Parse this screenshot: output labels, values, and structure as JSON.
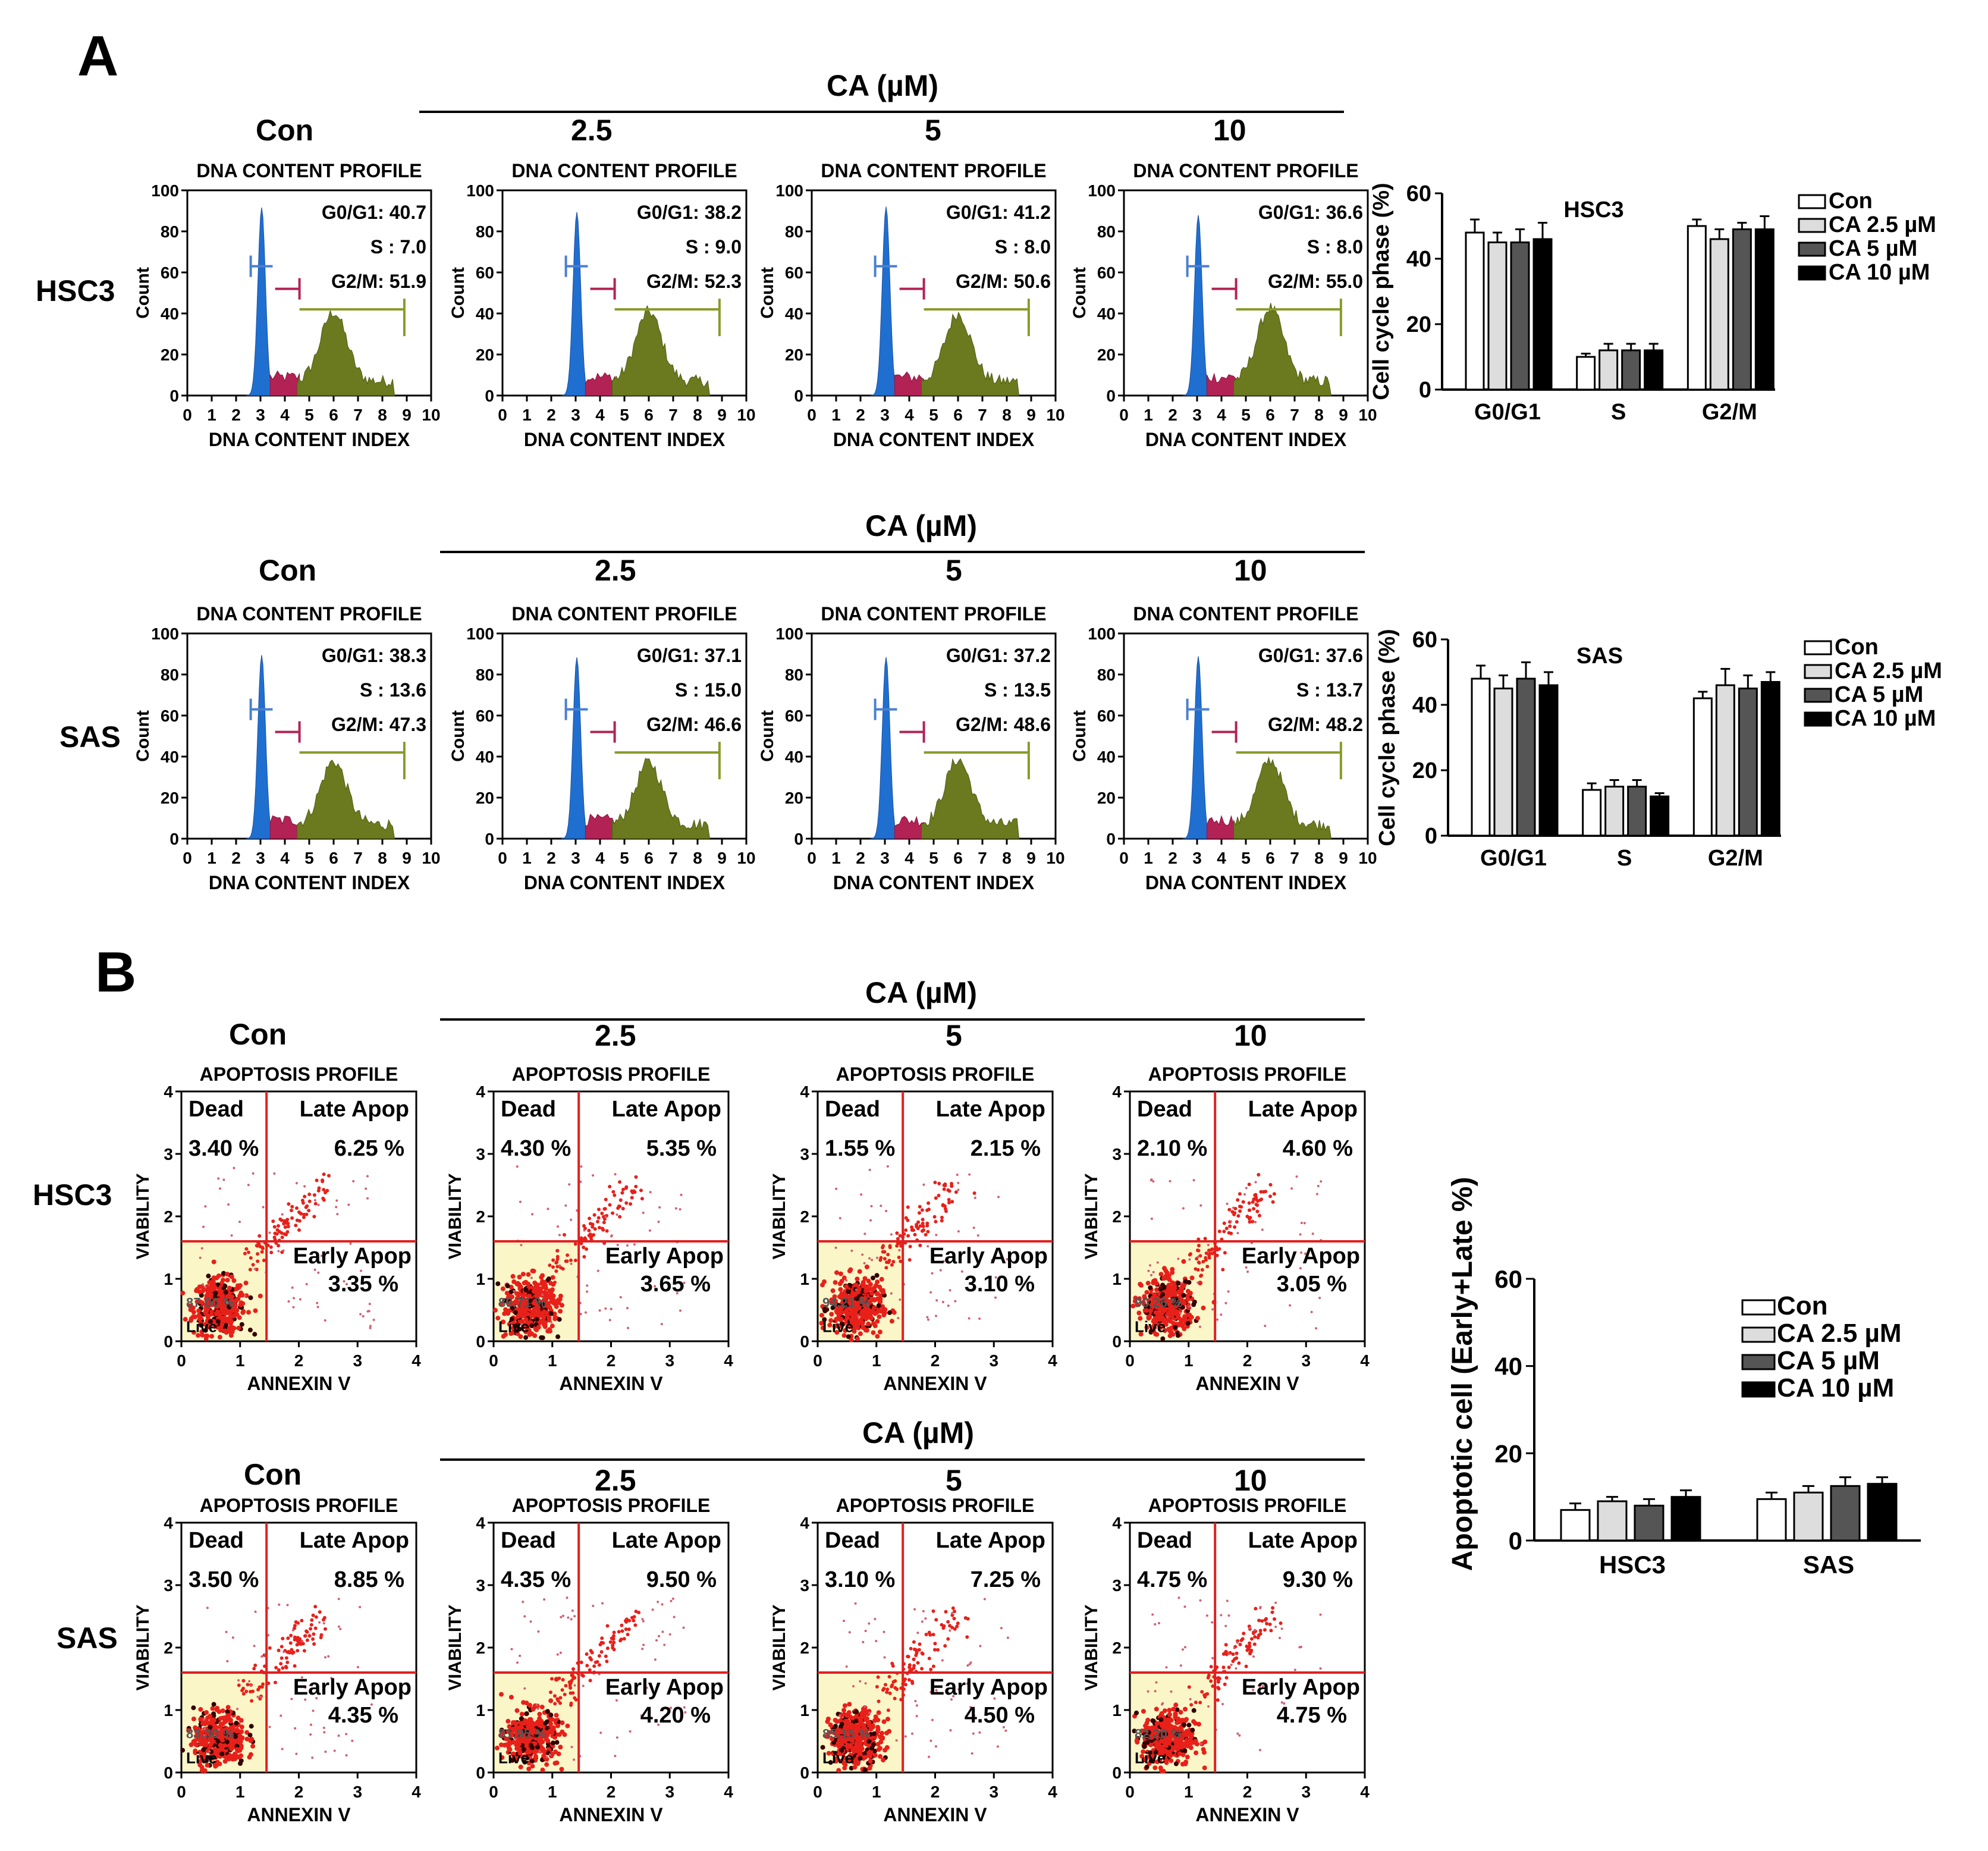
{
  "panelA": {
    "letter": "A",
    "rows": [
      {
        "rowLabel": "HSC3",
        "caLabel": "CA (µM)",
        "cols": [
          "Con",
          "2.5",
          "5",
          "10"
        ]
      },
      {
        "rowLabel": "SAS",
        "caLabel": "CA (µM)",
        "cols": [
          "Con",
          "2.5",
          "5",
          "10"
        ]
      }
    ]
  },
  "panelB": {
    "letter": "B",
    "rows": [
      {
        "rowLabel": "HSC3",
        "caLabel": "CA (µM)",
        "cols": [
          "Con",
          "2.5",
          "5",
          "10"
        ]
      },
      {
        "rowLabel": "SAS",
        "caLabel": "CA (µM)",
        "cols": [
          "Con",
          "2.5",
          "5",
          "10"
        ]
      }
    ]
  },
  "chart_data": [
    {
      "type": "histogram",
      "group": "cell-cycle-histograms",
      "title": "DNA CONTENT PROFILE",
      "xlabel": "DNA CONTENT INDEX",
      "ylabel": "Count",
      "xticks": [
        "0",
        "1",
        "2",
        "3",
        "4",
        "5",
        "6",
        "7",
        "8",
        "9",
        "10"
      ],
      "yticks": [
        "0",
        "20",
        "40",
        "60",
        "80",
        "100"
      ],
      "xlim": [
        0,
        10
      ],
      "ylim": [
        0,
        100
      ],
      "panels": [
        {
          "cell": "HSC3",
          "dose": "Con",
          "labels": [
            "G0/G1: 40.7",
            "S : 7.0",
            "G2/M: 51.9"
          ]
        },
        {
          "cell": "HSC3",
          "dose": "2.5",
          "labels": [
            "G0/G1: 38.2",
            "S : 9.0",
            "G2/M: 52.3"
          ]
        },
        {
          "cell": "HSC3",
          "dose": "5",
          "labels": [
            "G0/G1: 41.2",
            "S : 8.0",
            "G2/M: 50.6"
          ]
        },
        {
          "cell": "HSC3",
          "dose": "10",
          "labels": [
            "G0/G1: 36.6",
            "S : 8.0",
            "G2/M: 55.0"
          ]
        },
        {
          "cell": "SAS",
          "dose": "Con",
          "labels": [
            "G0/G1: 38.3",
            "S : 13.6",
            "G2/M:  47.3"
          ]
        },
        {
          "cell": "SAS",
          "dose": "2.5",
          "labels": [
            "G0/G1: 37.1",
            "S : 15.0",
            "G2/M:  46.6"
          ]
        },
        {
          "cell": "SAS",
          "dose": "5",
          "labels": [
            "G0/G1: 37.2",
            "S : 13.5",
            "G2/M:  48.6"
          ]
        },
        {
          "cell": "SAS",
          "dose": "10",
          "labels": [
            "G0/G1: 37.6",
            "S : 13.7",
            "G2/M:  48.2"
          ]
        }
      ]
    },
    {
      "type": "bar",
      "group": "cell-cycle-bar",
      "title": "HSC3",
      "ylabel": "Cell  cycle phase (%)",
      "categories": [
        "G0/G1",
        "S",
        "G2/M"
      ],
      "ylim": [
        0,
        60
      ],
      "yticks": [
        "0",
        "20",
        "40",
        "60"
      ],
      "series": [
        {
          "name": "Con",
          "fill": "#ffffff",
          "values": [
            48,
            10,
            50
          ],
          "errors": [
            4,
            1,
            2
          ]
        },
        {
          "name": "CA 2.5 µM",
          "fill": "#dddddd",
          "values": [
            45,
            12,
            46
          ],
          "errors": [
            3,
            2,
            3
          ]
        },
        {
          "name": "CA    5 µM",
          "fill": "#555555",
          "values": [
            45,
            12,
            49
          ],
          "errors": [
            4,
            2,
            2
          ]
        },
        {
          "name": "CA   10 µM",
          "fill": "#000000",
          "values": [
            46,
            12,
            49
          ],
          "errors": [
            5,
            2,
            4
          ]
        }
      ]
    },
    {
      "type": "bar",
      "group": "cell-cycle-bar",
      "title": "SAS",
      "ylabel": "Cell  cycle phase (%)",
      "categories": [
        "G0/G1",
        "S",
        "G2/M"
      ],
      "ylim": [
        0,
        60
      ],
      "yticks": [
        "0",
        "20",
        "40",
        "60"
      ],
      "series": [
        {
          "name": "Con",
          "fill": "#ffffff",
          "values": [
            48,
            14,
            42
          ],
          "errors": [
            4,
            2,
            2
          ]
        },
        {
          "name": "CA 2.5 µM",
          "fill": "#dddddd",
          "values": [
            45,
            15,
            46
          ],
          "errors": [
            4,
            2,
            5
          ]
        },
        {
          "name": "CA    5 µM",
          "fill": "#555555",
          "values": [
            48,
            15,
            45
          ],
          "errors": [
            5,
            2,
            4
          ]
        },
        {
          "name": "CA   10 µM",
          "fill": "#000000",
          "values": [
            46,
            12,
            47
          ],
          "errors": [
            4,
            1,
            3
          ]
        }
      ]
    },
    {
      "type": "scatter",
      "group": "apoptosis-plots",
      "title": "APOPTOSIS PROFILE",
      "xlabel": "ANNEXIN V",
      "ylabel": "VIABILITY",
      "xticks": [
        "0",
        "1",
        "2",
        "3",
        "4"
      ],
      "yticks": [
        "0",
        "1",
        "2",
        "3",
        "4"
      ],
      "xlim": [
        0,
        4
      ],
      "ylim": [
        0,
        4
      ],
      "quadrantNames": [
        "Dead",
        "Late Apop",
        "Early Apop",
        "Live"
      ],
      "panels": [
        {
          "cell": "HSC3",
          "dose": "Con",
          "dead": "3.40 %",
          "late": "6.25 %",
          "early": "3.35 %",
          "live": "87.00 %"
        },
        {
          "cell": "HSC3",
          "dose": "2.5",
          "dead": "4.30 %",
          "late": "5.35 %",
          "early": "3.65 %",
          "live": "86.71 %"
        },
        {
          "cell": "HSC3",
          "dose": "5",
          "dead": "1.55 %",
          "late": "2.15 %",
          "early": "3.10 %",
          "live": "94.21 %"
        },
        {
          "cell": "HSC3",
          "dose": "10",
          "dead": "2.10 %",
          "late": "4.60 %",
          "early": "3.05 %",
          "live": "90.26 %"
        },
        {
          "cell": "SAS",
          "dose": "Con",
          "dead": "3.50 %",
          "late": "8.85 %",
          "early": "4.35 %",
          "live": "83.30 %"
        },
        {
          "cell": "SAS",
          "dose": "2.5",
          "dead": "4.35 %",
          "late": "9.50 %",
          "early": "4.20 %",
          "live": "81.95 %"
        },
        {
          "cell": "SAS",
          "dose": "5",
          "dead": "3.10 %",
          "late": "7.25 %",
          "early": "4.50 %",
          "live": "85.15 %"
        },
        {
          "cell": "SAS",
          "dose": "10",
          "dead": "4.75 %",
          "late": "9.30 %",
          "early": "4.75 %",
          "live": "82.20 %"
        }
      ]
    },
    {
      "type": "bar",
      "group": "apoptosis-bar",
      "title": "",
      "ylabel": "Apoptotic cell (Early+Late %)",
      "categories": [
        "HSC3",
        "SAS"
      ],
      "ylim": [
        0,
        60
      ],
      "yticks": [
        "0",
        "20",
        "40",
        "60"
      ],
      "series": [
        {
          "name": "Con",
          "fill": "#ffffff",
          "values": [
            7,
            9.5
          ],
          "errors": [
            1.5,
            1.5
          ]
        },
        {
          "name": "CA 2.5 µM",
          "fill": "#dddddd",
          "values": [
            9,
            11
          ],
          "errors": [
            1,
            1.5
          ]
        },
        {
          "name": "CA    5 µM",
          "fill": "#555555",
          "values": [
            8,
            12.5
          ],
          "errors": [
            1.5,
            2
          ]
        },
        {
          "name": "CA   10 µM",
          "fill": "#000000",
          "values": [
            10,
            13
          ],
          "errors": [
            1.5,
            1.5
          ]
        }
      ]
    }
  ]
}
